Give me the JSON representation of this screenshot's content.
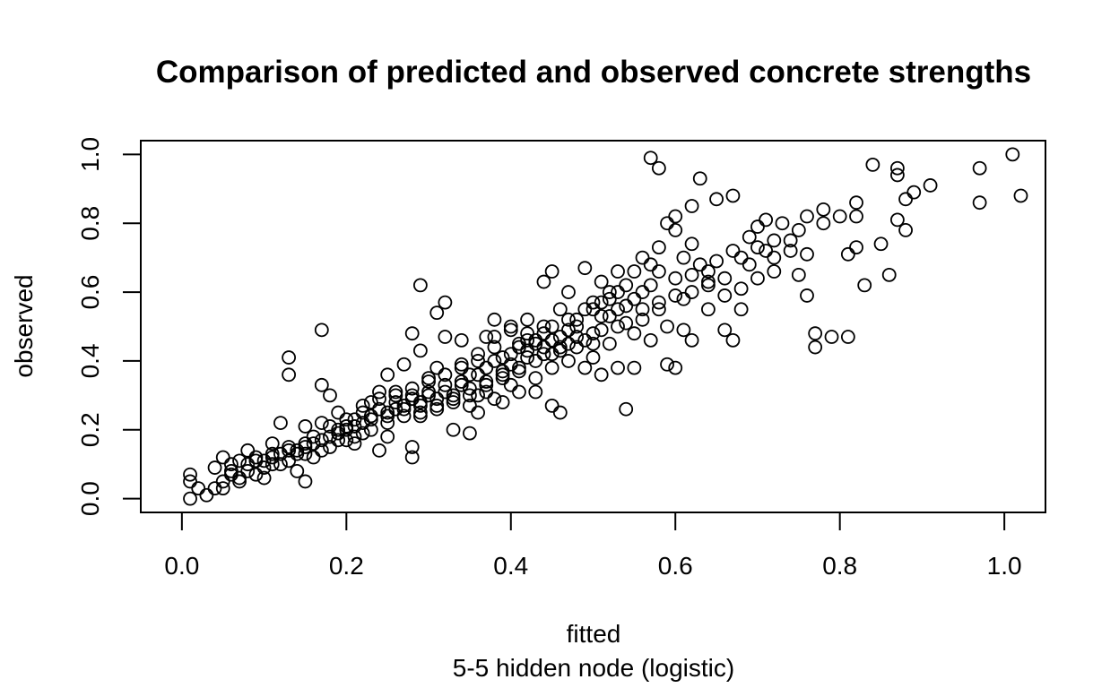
{
  "chart_data": {
    "type": "scatter",
    "title": "Comparison of predicted and observed concrete strengths",
    "xlabel": "fitted",
    "xlabel_sub": "5-5 hidden node (logistic)",
    "ylabel": "observed",
    "xlim": [
      -0.05,
      1.05
    ],
    "ylim": [
      -0.04,
      1.04
    ],
    "x_ticks": [
      0.0,
      0.2,
      0.4,
      0.6,
      0.8,
      1.0
    ],
    "x_tick_labels": [
      "0.0",
      "0.2",
      "0.4",
      "0.6",
      "0.8",
      "1.0"
    ],
    "y_ticks": [
      0.0,
      0.2,
      0.4,
      0.6,
      0.8,
      1.0
    ],
    "y_tick_labels": [
      "0.0",
      "0.2",
      "0.4",
      "0.6",
      "0.8",
      "1.0"
    ],
    "grid": false,
    "marker": "open-circle",
    "points": [
      [
        0.01,
        0.07
      ],
      [
        0.01,
        0.05
      ],
      [
        0.01,
        0.0
      ],
      [
        0.02,
        0.03
      ],
      [
        0.03,
        0.01
      ],
      [
        0.04,
        0.03
      ],
      [
        0.04,
        0.09
      ],
      [
        0.05,
        0.12
      ],
      [
        0.05,
        0.03
      ],
      [
        0.06,
        0.07
      ],
      [
        0.06,
        0.1
      ],
      [
        0.07,
        0.05
      ],
      [
        0.07,
        0.11
      ],
      [
        0.08,
        0.14
      ],
      [
        0.08,
        0.08
      ],
      [
        0.09,
        0.11
      ],
      [
        0.1,
        0.09
      ],
      [
        0.1,
        0.06
      ],
      [
        0.11,
        0.12
      ],
      [
        0.11,
        0.16
      ],
      [
        0.12,
        0.22
      ],
      [
        0.12,
        0.1
      ],
      [
        0.13,
        0.14
      ],
      [
        0.13,
        0.41
      ],
      [
        0.13,
        0.36
      ],
      [
        0.14,
        0.08
      ],
      [
        0.14,
        0.13
      ],
      [
        0.15,
        0.05
      ],
      [
        0.15,
        0.21
      ],
      [
        0.15,
        0.16
      ],
      [
        0.16,
        0.12
      ],
      [
        0.16,
        0.18
      ],
      [
        0.17,
        0.22
      ],
      [
        0.17,
        0.33
      ],
      [
        0.17,
        0.49
      ],
      [
        0.18,
        0.15
      ],
      [
        0.18,
        0.3
      ],
      [
        0.19,
        0.19
      ],
      [
        0.19,
        0.25
      ],
      [
        0.2,
        0.17
      ],
      [
        0.2,
        0.21
      ],
      [
        0.21,
        0.16
      ],
      [
        0.21,
        0.23
      ],
      [
        0.22,
        0.27
      ],
      [
        0.22,
        0.19
      ],
      [
        0.23,
        0.24
      ],
      [
        0.23,
        0.28
      ],
      [
        0.24,
        0.14
      ],
      [
        0.24,
        0.31
      ],
      [
        0.25,
        0.22
      ],
      [
        0.25,
        0.36
      ],
      [
        0.25,
        0.18
      ],
      [
        0.26,
        0.26
      ],
      [
        0.26,
        0.3
      ],
      [
        0.27,
        0.39
      ],
      [
        0.27,
        0.26
      ],
      [
        0.28,
        0.32
      ],
      [
        0.28,
        0.48
      ],
      [
        0.28,
        0.15
      ],
      [
        0.28,
        0.12
      ],
      [
        0.29,
        0.28
      ],
      [
        0.29,
        0.43
      ],
      [
        0.29,
        0.24
      ],
      [
        0.29,
        0.62
      ],
      [
        0.3,
        0.3
      ],
      [
        0.3,
        0.35
      ],
      [
        0.31,
        0.54
      ],
      [
        0.31,
        0.38
      ],
      [
        0.31,
        0.27
      ],
      [
        0.32,
        0.57
      ],
      [
        0.32,
        0.47
      ],
      [
        0.32,
        0.31
      ],
      [
        0.33,
        0.29
      ],
      [
        0.33,
        0.2
      ],
      [
        0.34,
        0.33
      ],
      [
        0.34,
        0.38
      ],
      [
        0.34,
        0.46
      ],
      [
        0.35,
        0.19
      ],
      [
        0.35,
        0.27
      ],
      [
        0.35,
        0.36
      ],
      [
        0.36,
        0.3
      ],
      [
        0.36,
        0.4
      ],
      [
        0.36,
        0.25
      ],
      [
        0.37,
        0.47
      ],
      [
        0.37,
        0.34
      ],
      [
        0.37,
        0.38
      ],
      [
        0.38,
        0.52
      ],
      [
        0.38,
        0.44
      ],
      [
        0.38,
        0.29
      ],
      [
        0.39,
        0.36
      ],
      [
        0.39,
        0.41
      ],
      [
        0.39,
        0.28
      ],
      [
        0.4,
        0.5
      ],
      [
        0.4,
        0.39
      ],
      [
        0.4,
        0.33
      ],
      [
        0.41,
        0.44
      ],
      [
        0.41,
        0.31
      ],
      [
        0.41,
        0.37
      ],
      [
        0.42,
        0.48
      ],
      [
        0.42,
        0.41
      ],
      [
        0.42,
        0.52
      ],
      [
        0.43,
        0.45
      ],
      [
        0.43,
        0.35
      ],
      [
        0.43,
        0.31
      ],
      [
        0.44,
        0.63
      ],
      [
        0.44,
        0.5
      ],
      [
        0.44,
        0.42
      ],
      [
        0.45,
        0.27
      ],
      [
        0.45,
        0.66
      ],
      [
        0.45,
        0.46
      ],
      [
        0.45,
        0.38
      ],
      [
        0.46,
        0.25
      ],
      [
        0.46,
        0.55
      ],
      [
        0.46,
        0.43
      ],
      [
        0.47,
        0.6
      ],
      [
        0.47,
        0.49
      ],
      [
        0.47,
        0.4
      ],
      [
        0.48,
        0.52
      ],
      [
        0.48,
        0.44
      ],
      [
        0.49,
        0.67
      ],
      [
        0.49,
        0.38
      ],
      [
        0.5,
        0.57
      ],
      [
        0.5,
        0.48
      ],
      [
        0.5,
        0.41
      ],
      [
        0.51,
        0.63
      ],
      [
        0.51,
        0.36
      ],
      [
        0.51,
        0.53
      ],
      [
        0.52,
        0.58
      ],
      [
        0.52,
        0.45
      ],
      [
        0.53,
        0.66
      ],
      [
        0.53,
        0.5
      ],
      [
        0.53,
        0.38
      ],
      [
        0.54,
        0.56
      ],
      [
        0.54,
        0.26
      ],
      [
        0.54,
        0.62
      ],
      [
        0.55,
        0.48
      ],
      [
        0.55,
        0.38
      ],
      [
        0.56,
        0.6
      ],
      [
        0.56,
        0.52
      ],
      [
        0.57,
        0.99
      ],
      [
        0.57,
        0.68
      ],
      [
        0.57,
        0.46
      ],
      [
        0.58,
        0.96
      ],
      [
        0.58,
        0.66
      ],
      [
        0.58,
        0.55
      ],
      [
        0.59,
        0.8
      ],
      [
        0.59,
        0.5
      ],
      [
        0.59,
        0.39
      ],
      [
        0.6,
        0.82
      ],
      [
        0.6,
        0.64
      ],
      [
        0.6,
        0.38
      ],
      [
        0.61,
        0.7
      ],
      [
        0.61,
        0.58
      ],
      [
        0.61,
        0.49
      ],
      [
        0.62,
        0.74
      ],
      [
        0.62,
        0.85
      ],
      [
        0.62,
        0.46
      ],
      [
        0.63,
        0.93
      ],
      [
        0.63,
        0.68
      ],
      [
        0.64,
        0.55
      ],
      [
        0.64,
        0.62
      ],
      [
        0.65,
        0.87
      ],
      [
        0.65,
        0.69
      ],
      [
        0.66,
        0.49
      ],
      [
        0.66,
        0.59
      ],
      [
        0.67,
        0.88
      ],
      [
        0.67,
        0.72
      ],
      [
        0.67,
        0.46
      ],
      [
        0.68,
        0.61
      ],
      [
        0.68,
        0.55
      ],
      [
        0.69,
        0.76
      ],
      [
        0.69,
        0.68
      ],
      [
        0.7,
        0.79
      ],
      [
        0.7,
        0.64
      ],
      [
        0.71,
        0.81
      ],
      [
        0.71,
        0.72
      ],
      [
        0.72,
        0.7
      ],
      [
        0.72,
        0.66
      ],
      [
        0.73,
        0.8
      ],
      [
        0.74,
        0.75
      ],
      [
        0.75,
        0.78
      ],
      [
        0.75,
        0.65
      ],
      [
        0.76,
        0.82
      ],
      [
        0.76,
        0.71
      ],
      [
        0.76,
        0.59
      ],
      [
        0.77,
        0.44
      ],
      [
        0.77,
        0.48
      ],
      [
        0.78,
        0.84
      ],
      [
        0.78,
        0.8
      ],
      [
        0.79,
        0.47
      ],
      [
        0.8,
        0.82
      ],
      [
        0.81,
        0.71
      ],
      [
        0.81,
        0.47
      ],
      [
        0.82,
        0.86
      ],
      [
        0.82,
        0.82
      ],
      [
        0.82,
        0.73
      ],
      [
        0.83,
        0.62
      ],
      [
        0.84,
        0.97
      ],
      [
        0.85,
        0.74
      ],
      [
        0.86,
        0.65
      ],
      [
        0.87,
        0.96
      ],
      [
        0.87,
        0.94
      ],
      [
        0.87,
        0.81
      ],
      [
        0.88,
        0.78
      ],
      [
        0.88,
        0.87
      ],
      [
        0.89,
        0.89
      ],
      [
        0.91,
        0.91
      ],
      [
        0.97,
        0.86
      ],
      [
        0.97,
        0.96
      ],
      [
        1.01,
        1.0
      ],
      [
        1.02,
        0.88
      ],
      [
        0.58,
        0.73
      ],
      [
        0.6,
        0.78
      ],
      [
        0.56,
        0.7
      ],
      [
        0.52,
        0.6
      ],
      [
        0.55,
        0.66
      ],
      [
        0.5,
        0.55
      ],
      [
        0.48,
        0.5
      ],
      [
        0.46,
        0.47
      ],
      [
        0.44,
        0.44
      ],
      [
        0.42,
        0.43
      ],
      [
        0.4,
        0.42
      ],
      [
        0.38,
        0.4
      ],
      [
        0.36,
        0.36
      ],
      [
        0.34,
        0.34
      ],
      [
        0.32,
        0.33
      ],
      [
        0.3,
        0.31
      ],
      [
        0.28,
        0.29
      ],
      [
        0.26,
        0.28
      ],
      [
        0.24,
        0.26
      ],
      [
        0.22,
        0.22
      ],
      [
        0.2,
        0.2
      ],
      [
        0.18,
        0.18
      ],
      [
        0.16,
        0.16
      ],
      [
        0.14,
        0.14
      ],
      [
        0.12,
        0.13
      ],
      [
        0.1,
        0.11
      ],
      [
        0.08,
        0.1
      ],
      [
        0.06,
        0.08
      ],
      [
        0.45,
        0.5
      ],
      [
        0.47,
        0.52
      ],
      [
        0.43,
        0.46
      ],
      [
        0.41,
        0.45
      ],
      [
        0.49,
        0.55
      ],
      [
        0.51,
        0.57
      ],
      [
        0.53,
        0.6
      ],
      [
        0.39,
        0.37
      ],
      [
        0.37,
        0.33
      ],
      [
        0.35,
        0.3
      ],
      [
        0.33,
        0.28
      ],
      [
        0.31,
        0.26
      ],
      [
        0.29,
        0.27
      ],
      [
        0.27,
        0.24
      ],
      [
        0.25,
        0.24
      ],
      [
        0.23,
        0.2
      ],
      [
        0.21,
        0.18
      ],
      [
        0.19,
        0.17
      ],
      [
        0.17,
        0.14
      ],
      [
        0.15,
        0.13
      ],
      [
        0.13,
        0.11
      ],
      [
        0.11,
        0.1
      ],
      [
        0.09,
        0.07
      ],
      [
        0.07,
        0.06
      ],
      [
        0.05,
        0.05
      ],
      [
        0.62,
        0.6
      ],
      [
        0.64,
        0.66
      ],
      [
        0.66,
        0.64
      ],
      [
        0.68,
        0.7
      ],
      [
        0.7,
        0.73
      ],
      [
        0.72,
        0.75
      ],
      [
        0.74,
        0.72
      ],
      [
        0.57,
        0.62
      ],
      [
        0.55,
        0.58
      ],
      [
        0.53,
        0.55
      ],
      [
        0.51,
        0.49
      ],
      [
        0.49,
        0.46
      ],
      [
        0.47,
        0.45
      ],
      [
        0.45,
        0.42
      ],
      [
        0.43,
        0.4
      ],
      [
        0.41,
        0.38
      ],
      [
        0.39,
        0.35
      ],
      [
        0.37,
        0.31
      ],
      [
        0.35,
        0.32
      ],
      [
        0.33,
        0.3
      ],
      [
        0.31,
        0.29
      ],
      [
        0.29,
        0.25
      ],
      [
        0.27,
        0.27
      ],
      [
        0.25,
        0.25
      ],
      [
        0.23,
        0.23
      ],
      [
        0.21,
        0.21
      ],
      [
        0.19,
        0.2
      ],
      [
        0.17,
        0.17
      ],
      [
        0.15,
        0.15
      ],
      [
        0.13,
        0.15
      ],
      [
        0.11,
        0.13
      ],
      [
        0.09,
        0.12
      ],
      [
        0.38,
        0.47
      ],
      [
        0.4,
        0.49
      ],
      [
        0.42,
        0.46
      ],
      [
        0.44,
        0.48
      ],
      [
        0.46,
        0.44
      ],
      [
        0.48,
        0.47
      ],
      [
        0.5,
        0.45
      ],
      [
        0.52,
        0.53
      ],
      [
        0.54,
        0.51
      ],
      [
        0.56,
        0.55
      ],
      [
        0.58,
        0.57
      ],
      [
        0.6,
        0.59
      ],
      [
        0.62,
        0.65
      ],
      [
        0.64,
        0.63
      ],
      [
        0.36,
        0.42
      ],
      [
        0.34,
        0.39
      ],
      [
        0.32,
        0.36
      ],
      [
        0.3,
        0.34
      ],
      [
        0.28,
        0.3
      ],
      [
        0.26,
        0.31
      ],
      [
        0.24,
        0.29
      ],
      [
        0.22,
        0.25
      ],
      [
        0.2,
        0.23
      ],
      [
        0.18,
        0.21
      ]
    ]
  }
}
